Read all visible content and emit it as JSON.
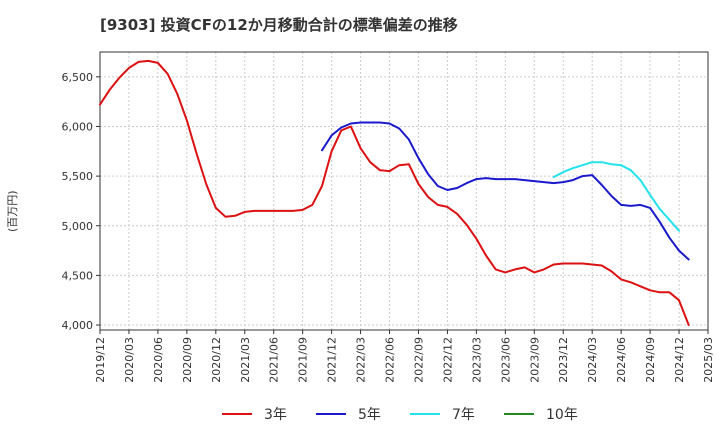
{
  "title": "[9303]  投資CFの12か月移動合計の標準偏差の推移",
  "y_unit": "(百万円)",
  "chart_data": {
    "type": "line",
    "title": "[9303]  投資CFの12か月移動合計の標準偏差の推移",
    "ylabel": "(百万円)",
    "ylim": [
      3950,
      6750
    ],
    "yticks": [
      4000,
      4500,
      5000,
      5500,
      6000,
      6500
    ],
    "ytick_labels": [
      "4,000",
      "4,500",
      "5,000",
      "5,500",
      "6,000",
      "6,500"
    ],
    "xlim": [
      "2019/12",
      "2025/03"
    ],
    "xtick_labels": [
      "2019/12",
      "2020/03",
      "2020/06",
      "2020/09",
      "2020/12",
      "2021/03",
      "2021/06",
      "2021/09",
      "2021/12",
      "2022/03",
      "2022/06",
      "2022/09",
      "2022/12",
      "2023/03",
      "2023/06",
      "2023/09",
      "2023/12",
      "2024/03",
      "2024/06",
      "2024/09",
      "2024/12",
      "2025/03"
    ],
    "grid": true,
    "legend_position": "bottom",
    "series": [
      {
        "name": "3年",
        "color": "#dd1111",
        "start": "2019/12",
        "values": [
          6220,
          6370,
          6490,
          6590,
          6650,
          6660,
          6640,
          6530,
          6330,
          6060,
          5730,
          5420,
          5180,
          5090,
          5100,
          5140,
          5150,
          5150,
          5150,
          5150,
          5150,
          5160,
          5210,
          5400,
          5750,
          5960,
          6000,
          5780,
          5640,
          5560,
          5550,
          5610,
          5620,
          5420,
          5290,
          5210,
          5190,
          5120,
          5010,
          4870,
          4700,
          4560,
          4530,
          4560,
          4580,
          4530,
          4560,
          4610,
          4620,
          4620,
          4620,
          4610,
          4600,
          4540,
          4460,
          4430,
          4390,
          4350,
          4330,
          4330,
          4250,
          4000
        ]
      },
      {
        "name": "5年",
        "color": "#1a1acc",
        "start": "2021/11",
        "values": [
          5760,
          5910,
          5990,
          6030,
          6040,
          6040,
          6040,
          6030,
          5980,
          5870,
          5680,
          5520,
          5400,
          5360,
          5380,
          5430,
          5470,
          5480,
          5470,
          5470,
          5470,
          5460,
          5450,
          5440,
          5430,
          5440,
          5460,
          5500,
          5510,
          5410,
          5300,
          5210,
          5200,
          5210,
          5180,
          5040,
          4880,
          4750,
          4660
        ]
      },
      {
        "name": "7年",
        "color": "#22e3ec",
        "start": "2023/11",
        "values": [
          5490,
          5540,
          5580,
          5610,
          5640,
          5640,
          5620,
          5610,
          5560,
          5460,
          5310,
          5170,
          5060,
          4950
        ]
      },
      {
        "name": "10年",
        "color": "#228822",
        "start": "2024/12",
        "values": []
      }
    ]
  }
}
